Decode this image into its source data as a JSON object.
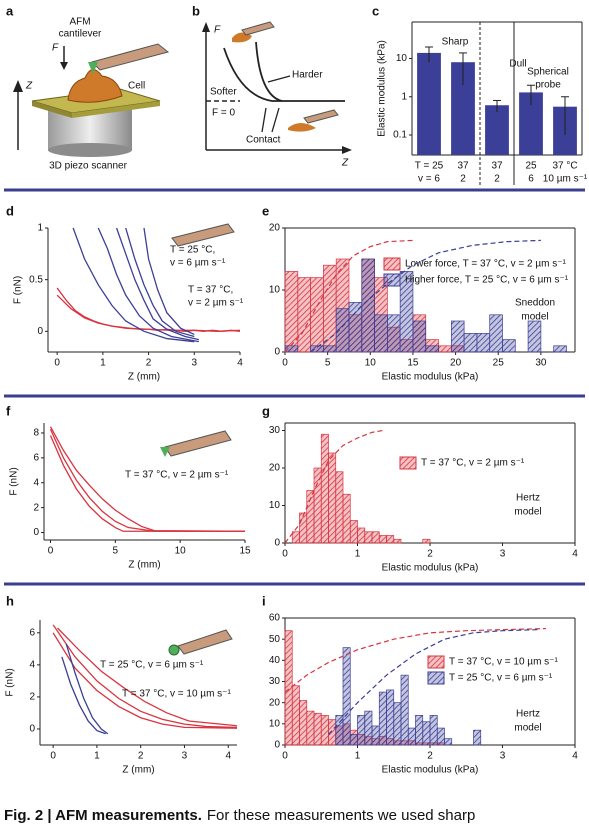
{
  "figure": {
    "panel_labels": [
      "a",
      "b",
      "c",
      "d",
      "e",
      "f",
      "g",
      "h",
      "i"
    ],
    "a": {
      "cantilever": [
        "AFM",
        "cantilever"
      ],
      "force": "F",
      "cell": "Cell",
      "z": "Z",
      "scanner": "3D piezo scanner"
    },
    "b": {
      "f": "F",
      "softer": "Softer",
      "harder": "Harder",
      "zero": "F = 0",
      "contact": "Contact",
      "z": "Z"
    }
  },
  "chart_data": [
    {
      "type": "bar",
      "ylabel": "Elastic modulus (kPa)",
      "categories": [
        "T = 25",
        "37",
        "37",
        "25",
        "37 °C"
      ],
      "categories2": [
        "v = 6",
        "2",
        "2",
        "6",
        "10 µm s⁻¹"
      ],
      "values": [
        14,
        8,
        0.6,
        1.3,
        0.55
      ],
      "errors": [
        6,
        6,
        0.2,
        0.7,
        0.45
      ],
      "color": "#3b3f97",
      "log": true,
      "ylim": [
        0.03,
        90
      ],
      "yticks": [
        0.1,
        1,
        10
      ],
      "annotations": [
        "Sharp",
        "Dull",
        "Spherical",
        "probe"
      ]
    },
    {
      "type": "line",
      "xlabel": "Z (mm)",
      "ylabel": "F (nN)",
      "xlim": [
        -0.2,
        4
      ],
      "xticks": [
        0,
        1,
        2,
        3,
        4
      ],
      "ylim": [
        -0.2,
        1
      ],
      "yticks": [
        0,
        0.5,
        1
      ],
      "series": [
        {
          "color": "#d9343f",
          "x": [
            0,
            0.2,
            0.4,
            0.6,
            0.8,
            1,
            1.2,
            1.4,
            1.6,
            1.8,
            2,
            2.2,
            2.4,
            2.6,
            2.8,
            3,
            3.2,
            3.4,
            3.6,
            3.8,
            4
          ],
          "values": [
            0.42,
            0.3,
            0.2,
            0.14,
            0.1,
            0.07,
            0.05,
            0.04,
            0.03,
            0.02,
            0.02,
            0.01,
            0.02,
            0.01,
            0,
            0.01,
            0,
            0.01,
            0,
            0.01,
            0
          ]
        },
        {
          "color": "#d9343f",
          "x": [
            0,
            0.3,
            0.6,
            0.9,
            1.2,
            1.5,
            2,
            2.5,
            3,
            3.5,
            4
          ],
          "values": [
            0.35,
            0.22,
            0.13,
            0.08,
            0.05,
            0.03,
            0.02,
            0.01,
            0.01,
            0,
            0.01
          ]
        },
        {
          "color": "#3b3f97",
          "x": [
            0.35,
            0.6,
            0.9,
            1.2,
            1.5,
            1.9,
            2.4,
            3
          ],
          "values": [
            1,
            0.7,
            0.45,
            0.25,
            0.1,
            0,
            -0.07,
            -0.1
          ]
        },
        {
          "color": "#3b3f97",
          "x": [
            0.9,
            1.1,
            1.3,
            1.5,
            1.8,
            2.1,
            2.5,
            3.1
          ],
          "values": [
            1,
            0.8,
            0.55,
            0.35,
            0.15,
            0.03,
            -0.05,
            -0.1
          ]
        },
        {
          "color": "#3b3f97",
          "x": [
            1.3,
            1.5,
            1.7,
            1.9,
            2.1,
            2.4,
            2.8,
            3.1
          ],
          "values": [
            1,
            0.75,
            0.5,
            0.3,
            0.12,
            0.02,
            -0.05,
            -0.08
          ]
        },
        {
          "color": "#3b3f97",
          "x": [
            1.5,
            1.7,
            1.9,
            2.1,
            2.3,
            2.6,
            3
          ],
          "values": [
            1,
            0.7,
            0.45,
            0.25,
            0.1,
            0,
            -0.05
          ]
        },
        {
          "color": "#3b3f97",
          "x": [
            1.9,
            2,
            2.2,
            2.4,
            2.7,
            3
          ],
          "values": [
            1,
            0.7,
            0.4,
            0.18,
            0.03,
            -0.03
          ]
        }
      ],
      "annotations": [
        "T = 25 °C,",
        "v = 6 µm s⁻¹",
        "T = 37 °C,",
        "v = 2 µm s⁻¹"
      ]
    },
    {
      "type": "histogram",
      "xlabel": "Elastic modulus (kPa)",
      "xlim": [
        0,
        34
      ],
      "xticks": [
        0,
        5,
        10,
        15,
        20,
        25,
        30
      ],
      "ylim": [
        0,
        20
      ],
      "yticks": [
        0,
        10,
        20
      ],
      "bins": [
        0,
        1.5,
        3,
        4.5,
        6,
        7.5,
        9,
        10.5,
        12,
        13.5,
        15,
        16.5,
        18,
        19.5,
        21,
        22.5,
        24,
        25.5,
        27,
        28.5,
        30,
        31.5,
        33
      ],
      "series": [
        {
          "name": "Lower force, T = 37 °C, v = 2 µm s⁻¹",
          "color": "#d9343f",
          "values": [
            13,
            12,
            12,
            14,
            15,
            6,
            15,
            12,
            4,
            2,
            6,
            2,
            1,
            1,
            0,
            0,
            0,
            0,
            0,
            0,
            0,
            0
          ]
        },
        {
          "name": "Higher force, T = 25 °C, v = 6 µm s⁻¹",
          "color": "#3b3f97",
          "values": [
            1,
            0,
            1,
            1,
            7,
            8,
            15,
            6,
            6,
            13,
            5,
            1,
            0,
            5,
            3,
            3,
            6,
            2,
            0,
            5,
            0,
            1
          ]
        }
      ],
      "lines": [
        {
          "color": "#d9343f",
          "x": [
            0,
            2,
            4,
            6,
            8,
            10,
            12,
            15
          ],
          "values": [
            0,
            3,
            8,
            12.5,
            15.5,
            17,
            17.8,
            18
          ]
        },
        {
          "color": "#3b3f97",
          "x": [
            3,
            6,
            9,
            12,
            15,
            18,
            22,
            26,
            30
          ],
          "values": [
            0,
            3,
            7.5,
            11,
            14,
            16,
            17.2,
            17.8,
            18
          ]
        }
      ],
      "annotations": [
        "Sneddon",
        "model"
      ]
    },
    {
      "type": "line",
      "xlabel": "Z (mm)",
      "ylabel": "F (nN)",
      "xlim": [
        -0.5,
        15
      ],
      "xticks": [
        0,
        5,
        10,
        15
      ],
      "ylim": [
        -0.6,
        8.8
      ],
      "yticks": [
        0,
        2,
        4,
        6,
        8
      ],
      "series": [
        {
          "color": "#d9343f",
          "x": [
            0,
            1,
            2,
            3,
            4,
            5,
            6,
            8,
            15
          ],
          "values": [
            8.3,
            6,
            4.2,
            2.8,
            1.7,
            0.9,
            0.4,
            0.1,
            0.1
          ]
        },
        {
          "color": "#d9343f",
          "x": [
            0,
            1,
            2,
            3,
            4,
            5,
            6,
            7,
            8,
            15
          ],
          "values": [
            8.5,
            6.6,
            5,
            3.8,
            2.7,
            1.8,
            1.1,
            0.5,
            0.15,
            0.1
          ]
        },
        {
          "color": "#d9343f",
          "x": [
            0,
            1,
            2,
            3,
            4,
            5,
            5.6,
            15
          ],
          "values": [
            7.8,
            5.4,
            3.5,
            2.1,
            1.1,
            0.4,
            0.1,
            0.1
          ]
        }
      ],
      "annotations": [
        "T = 37 °C, v = 2 µm s⁻¹"
      ]
    },
    {
      "type": "histogram",
      "xlabel": "Elastic modulus (kPa)",
      "xlim": [
        0,
        4
      ],
      "xticks": [
        0,
        1,
        2,
        3,
        4
      ],
      "ylim": [
        0,
        32
      ],
      "yticks": [
        0,
        10,
        20,
        30
      ],
      "bins": [
        0,
        0.1,
        0.2,
        0.3,
        0.4,
        0.5,
        0.6,
        0.7,
        0.8,
        0.9,
        1,
        1.1,
        1.2,
        1.3,
        1.4,
        1.5,
        1.6,
        1.7,
        1.8,
        1.9,
        2
      ],
      "series": [
        {
          "name": "T = 37 °C, v = 2 µm s⁻¹",
          "color": "#d9343f",
          "values": [
            0,
            3,
            8,
            14,
            20,
            29,
            24,
            19,
            13,
            6,
            4,
            3,
            3,
            2,
            2,
            1,
            0,
            0,
            0,
            1
          ]
        }
      ],
      "lines": [
        {
          "color": "#d9343f",
          "x": [
            0,
            0.2,
            0.4,
            0.6,
            0.8,
            1,
            1.2,
            1.35
          ],
          "values": [
            0,
            5,
            14,
            22,
            26,
            28,
            29.5,
            30
          ]
        }
      ],
      "annotations": [
        "Hertz",
        "model"
      ]
    },
    {
      "type": "line",
      "xlabel": "Z (mm)",
      "ylabel": "F (nN)",
      "xlim": [
        -0.3,
        4.2
      ],
      "xticks": [
        0,
        1,
        2,
        3,
        4
      ],
      "ylim": [
        -1,
        6.8
      ],
      "yticks": [
        0,
        2,
        4,
        6
      ],
      "series": [
        {
          "color": "#d9343f",
          "x": [
            0,
            0.5,
            1,
            1.5,
            2,
            2.5,
            3,
            3.5,
            4.2
          ],
          "values": [
            6.5,
            4.5,
            3,
            1.9,
            1.1,
            0.6,
            0.3,
            0.15,
            0.1
          ]
        },
        {
          "color": "#d9343f",
          "x": [
            0,
            0.5,
            1,
            1.5,
            2,
            2.5,
            3,
            4.2
          ],
          "values": [
            6,
            3.8,
            2.4,
            1.4,
            0.7,
            0.3,
            0.1,
            0.05
          ]
        },
        {
          "color": "#d9343f",
          "x": [
            0.1,
            0.6,
            1.1,
            1.6,
            2.1,
            2.6,
            3.1,
            4.2
          ],
          "values": [
            6.3,
            4.9,
            3.6,
            2.6,
            1.7,
            1,
            0.5,
            0.2
          ]
        },
        {
          "color": "#3b3f97",
          "x": [
            0.3,
            0.5,
            0.7,
            0.9,
            1.1,
            1.25
          ],
          "values": [
            5.3,
            3.5,
            1.9,
            0.7,
            0,
            -0.3
          ]
        },
        {
          "color": "#3b3f97",
          "x": [
            0.2,
            0.4,
            0.6,
            0.8,
            1,
            1.2
          ],
          "values": [
            4.5,
            2.8,
            1.5,
            0.5,
            -0.1,
            -0.3
          ]
        }
      ],
      "annotations": [
        "T = 25 °C, v = 6 µm s⁻¹",
        "T = 37 °C, v = 10 µm s⁻¹"
      ]
    },
    {
      "type": "histogram",
      "xlabel": "Elastic modulus (kPa)",
      "xlim": [
        0,
        4
      ],
      "xticks": [
        0,
        1,
        2,
        3,
        4
      ],
      "ylim": [
        0,
        60
      ],
      "yticks": [
        0,
        10,
        20,
        30,
        40,
        50,
        60
      ],
      "bins": [
        0,
        0.1,
        0.2,
        0.3,
        0.4,
        0.5,
        0.6,
        0.7,
        0.8,
        0.9,
        1,
        1.1,
        1.2,
        1.3,
        1.4,
        1.5,
        1.6,
        1.7,
        1.8,
        1.9,
        2,
        2.1,
        2.2,
        2.3,
        2.4,
        2.5,
        2.6,
        2.7,
        2.8
      ],
      "series": [
        {
          "name": "T = 37 °C, v = 10 µm s⁻¹",
          "color": "#d9343f",
          "values": [
            54,
            28,
            21,
            16,
            15,
            14,
            12,
            9,
            10,
            7,
            5,
            4,
            3,
            4,
            3,
            2,
            2,
            2,
            1,
            1,
            1,
            1,
            0,
            0,
            0,
            0,
            0,
            0
          ]
        },
        {
          "name": "T = 25 °C, v = 6 µm s⁻¹",
          "color": "#3b3f97",
          "values": [
            0,
            0,
            0,
            0,
            0,
            0,
            0,
            14,
            46,
            5,
            14,
            16,
            9,
            25,
            26,
            20,
            33,
            8,
            14,
            11,
            14,
            8,
            3,
            0,
            0,
            0,
            7,
            0
          ]
        }
      ],
      "lines": [
        {
          "color": "#d9343f",
          "x": [
            0,
            0.3,
            0.6,
            1,
            1.5,
            2,
            2.5,
            3,
            3.6
          ],
          "values": [
            25,
            33,
            39,
            45,
            50,
            53,
            54,
            54.5,
            55
          ]
        },
        {
          "color": "#3b3f97",
          "x": [
            0.6,
            1,
            1.4,
            1.8,
            2.2,
            2.6,
            3,
            3.5
          ],
          "values": [
            5,
            20,
            33,
            43,
            50,
            53,
            54,
            54.5
          ]
        }
      ],
      "annotations": [
        "Hertz",
        "model"
      ]
    }
  ],
  "caption": {
    "title": "Fig. 2 | AFM measurements.",
    "text": "For these measurements we used sharp"
  }
}
